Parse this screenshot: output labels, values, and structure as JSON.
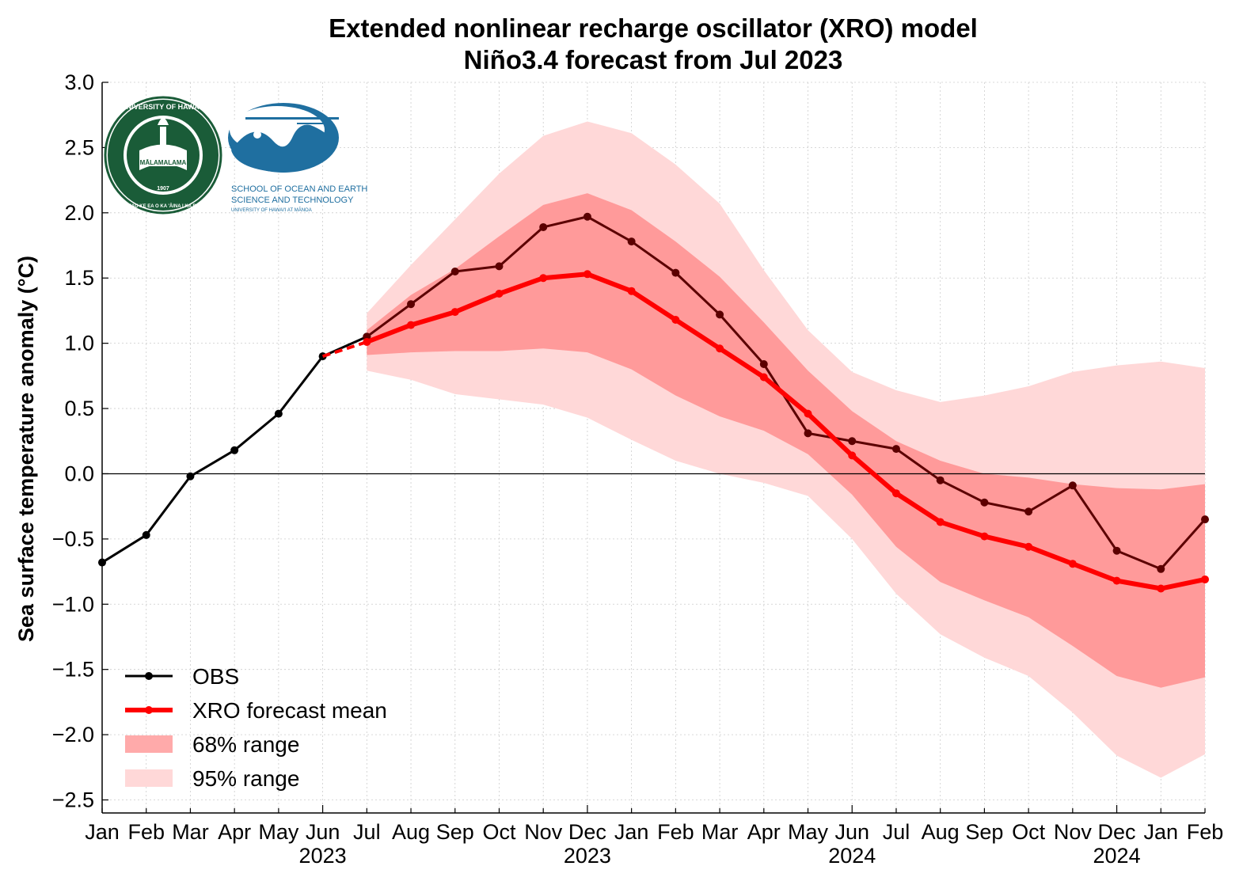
{
  "chart_data": {
    "type": "line",
    "title": "Extended nonlinear recharge oscillator (XRO) model",
    "subtitle": "Niño3.4 forecast from Jul 2023",
    "ylabel": "Sea surface temperature anomaly (°C)",
    "xlabel": "",
    "ylim": [
      -2.6,
      3.0
    ],
    "yticks": [
      3.0,
      2.5,
      2.0,
      1.5,
      1.0,
      0.5,
      0.0,
      -0.5,
      -1.0,
      -1.5,
      -2.0,
      -2.5
    ],
    "ytick_labels": [
      "3.0",
      "2.5",
      "2.0",
      "1.5",
      "1.0",
      "0.5",
      "0.0",
      "−0.5",
      "−1.0",
      "−1.5",
      "−2.0",
      "−2.5"
    ],
    "grid": true,
    "legend_position": "lower-left",
    "months": [
      "Jan",
      "Feb",
      "Mar",
      "Apr",
      "May",
      "Jun",
      "Jul",
      "Aug",
      "Sep",
      "Oct",
      "Nov",
      "Dec",
      "Jan",
      "Feb",
      "Mar",
      "Apr",
      "May",
      "Jun",
      "Jul",
      "Aug",
      "Sep",
      "Oct",
      "Nov",
      "Dec",
      "Jan",
      "Feb"
    ],
    "year_labels": [
      {
        "index": 5,
        "label": "2023"
      },
      {
        "index": 11,
        "label": "2023"
      },
      {
        "index": 17,
        "label": "2024"
      },
      {
        "index": 23,
        "label": "2024"
      }
    ],
    "obs": {
      "name": "OBS",
      "color": "#000000",
      "start_index": 0,
      "values": [
        -0.68,
        -0.47,
        -0.02,
        0.18,
        0.46,
        0.9,
        1.05
      ]
    },
    "obs_verification": {
      "color": "#5c0000",
      "start_index": 6,
      "values": [
        1.05,
        1.3,
        1.55,
        1.59,
        1.89,
        1.97,
        1.78,
        1.54,
        1.22,
        0.84,
        0.31,
        0.25,
        0.19,
        -0.05,
        -0.22,
        -0.29,
        -0.09,
        -0.59,
        -0.73,
        -0.35
      ]
    },
    "forecast_mean": {
      "name": "XRO forecast mean",
      "color": "#ff0000",
      "start_index": 6,
      "bridge_from_index": 5,
      "values": [
        1.01,
        1.14,
        1.24,
        1.38,
        1.5,
        1.53,
        1.4,
        1.18,
        0.96,
        0.74,
        0.46,
        0.14,
        -0.15,
        -0.37,
        -0.48,
        -0.56,
        -0.69,
        -0.82,
        -0.88,
        -0.81
      ]
    },
    "range68": {
      "name": "68% range",
      "color": "#ff9a9a",
      "start_index": 6,
      "upper": [
        1.1,
        1.37,
        1.57,
        1.82,
        2.06,
        2.15,
        2.02,
        1.78,
        1.51,
        1.16,
        0.79,
        0.48,
        0.25,
        0.1,
        0.0,
        -0.03,
        -0.08,
        -0.11,
        -0.12,
        -0.08
      ],
      "lower": [
        0.91,
        0.93,
        0.94,
        0.94,
        0.96,
        0.93,
        0.8,
        0.6,
        0.44,
        0.33,
        0.15,
        -0.16,
        -0.56,
        -0.83,
        -0.97,
        -1.1,
        -1.32,
        -1.55,
        -1.64,
        -1.56
      ]
    },
    "range95": {
      "name": "95% range",
      "color": "#ffd8d8",
      "start_index": 6,
      "upper": [
        1.23,
        1.6,
        1.95,
        2.3,
        2.59,
        2.7,
        2.61,
        2.37,
        2.07,
        1.56,
        1.1,
        0.78,
        0.64,
        0.55,
        0.6,
        0.67,
        0.78,
        0.83,
        0.86,
        0.81
      ],
      "lower": [
        0.79,
        0.72,
        0.61,
        0.57,
        0.53,
        0.43,
        0.26,
        0.1,
        0.0,
        -0.07,
        -0.17,
        -0.5,
        -0.92,
        -1.23,
        -1.41,
        -1.55,
        -1.83,
        -2.16,
        -2.33,
        -2.15
      ]
    }
  },
  "logos": {
    "uh_seal": {
      "name": "UNIVERSITY OF HAWAI'I",
      "motto": "UA MAU KE EA O KA 'ĀINA I KA PONO",
      "banner": "MĀLAMALAMA",
      "year": "1907",
      "color": "#1a5c38"
    },
    "soest": {
      "line1": "SCHOOL OF OCEAN AND EARTH",
      "line2": "SCIENCE AND TECHNOLOGY",
      "line3": "UNIVERSITY OF HAWAI'I AT MĀNOA",
      "color": "#1f6fa0"
    }
  }
}
